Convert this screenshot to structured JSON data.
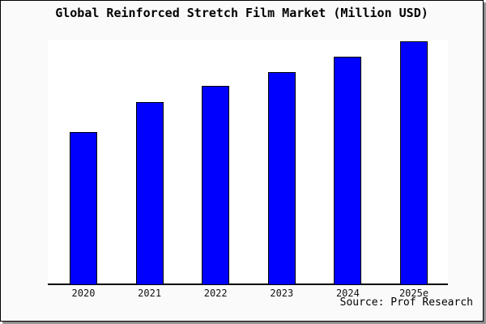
{
  "window": {
    "background": "#fafafa",
    "frame_border_color": "#000000",
    "shadow_color": "#8a8a8a"
  },
  "chart_data": {
    "type": "bar",
    "title": "Global Reinforced Stretch Film Market (Million USD)",
    "categories": [
      "2020",
      "2021",
      "2022",
      "2023",
      "2024",
      "2025e"
    ],
    "values": [
      62.9,
      75.0,
      81.6,
      87.5,
      93.8,
      100.0
    ],
    "values_note": "y-axis has no ticks or labels; values are relative, indexed to 2025e = 100",
    "xlabel": "",
    "ylabel": "",
    "ylim": [
      0,
      100.5
    ],
    "grid": false,
    "legend": false,
    "bar_color": "#0000ff",
    "bar_border_color": "#000000",
    "plot_background": "#ffffff",
    "axis_color": "#000000",
    "text_color": "#000000"
  },
  "source": {
    "label": "Source: Prof Research"
  }
}
